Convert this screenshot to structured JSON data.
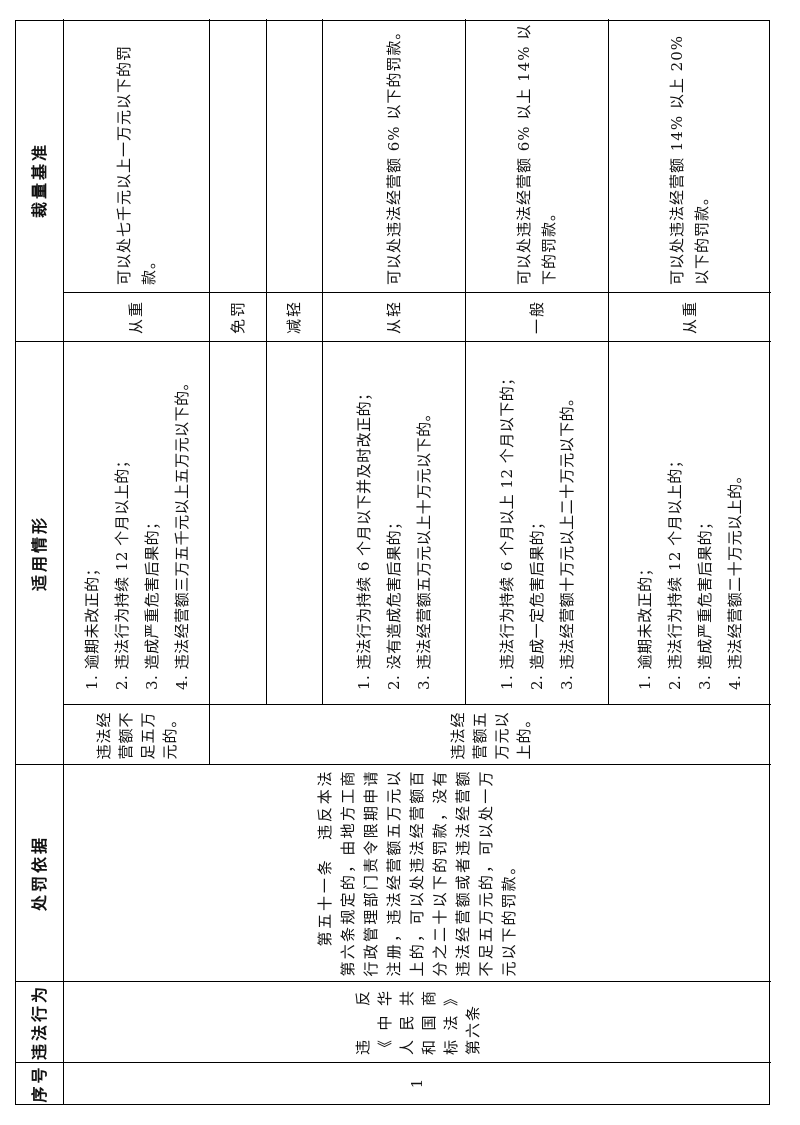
{
  "document": {
    "type": "penalty-discretion-table",
    "colors": {
      "border": "#000000",
      "text": "#111111",
      "background": "#ffffff"
    },
    "headers": {
      "serial": "序号",
      "illegal_act": "违法行为",
      "penalty_basis": "处罚依据",
      "applicable_situations": "适用情形",
      "discretion_benchmark": "裁量基准"
    },
    "record": {
      "serial": "1",
      "illegal_act": "违反《中华人民共和国商标法》第六条",
      "penalty_basis": "第五十一条　违反本法第六条规定的，由地方工商行政管理部门责令限期申请注册，违法经营额五万元以上的，可以处违法经营额百分之二十以下的罚款，没有违法经营额或者违法经营额不足五万元的，可以处一万元以下的罚款。",
      "amount_groups": {
        "under_50k": "违法经营额不足五万元的。",
        "over_50k": "违法经营额五万元以上的。"
      },
      "tiers": [
        {
          "label": "从重",
          "situations": [
            "1. 逾期未改正的；",
            "2. 违法行为持续 12 个月以上的；",
            "3. 造成严重危害后果的；",
            "4. 违法经营额三万五千元以上五万元以下的。"
          ],
          "penalty": "可以处七千元以上一万元以下的罚款。"
        },
        {
          "label": "免罚",
          "situations": [],
          "penalty": ""
        },
        {
          "label": "减轻",
          "situations": [],
          "penalty": ""
        },
        {
          "label": "从轻",
          "situations": [
            "1. 违法行为持续 6 个月以下并及时改正的；",
            "2. 没有造成危害后果的；",
            "3. 违法经营额五万元以上十万元以下的。"
          ],
          "penalty": "可以处违法经营额 6% 以下的罚款。"
        },
        {
          "label": "一般",
          "situations": [
            "1. 违法行为持续 6 个月以上 12 个月以下的；",
            "2. 造成一定危害后果的；",
            "3. 违法经营额十万元以上二十万元以下的。"
          ],
          "penalty": "可以处违法经营额 6% 以上 14% 以下的罚款。"
        },
        {
          "label": "从重",
          "situations": [
            "1. 逾期未改正的；",
            "2. 违法行为持续 12 个月以上的；",
            "3. 造成严重危害后果的；",
            "4. 违法经营额二十万元以上的。"
          ],
          "penalty": "可以处违法经营额 14% 以上 20% 以下的罚款。"
        }
      ]
    }
  }
}
